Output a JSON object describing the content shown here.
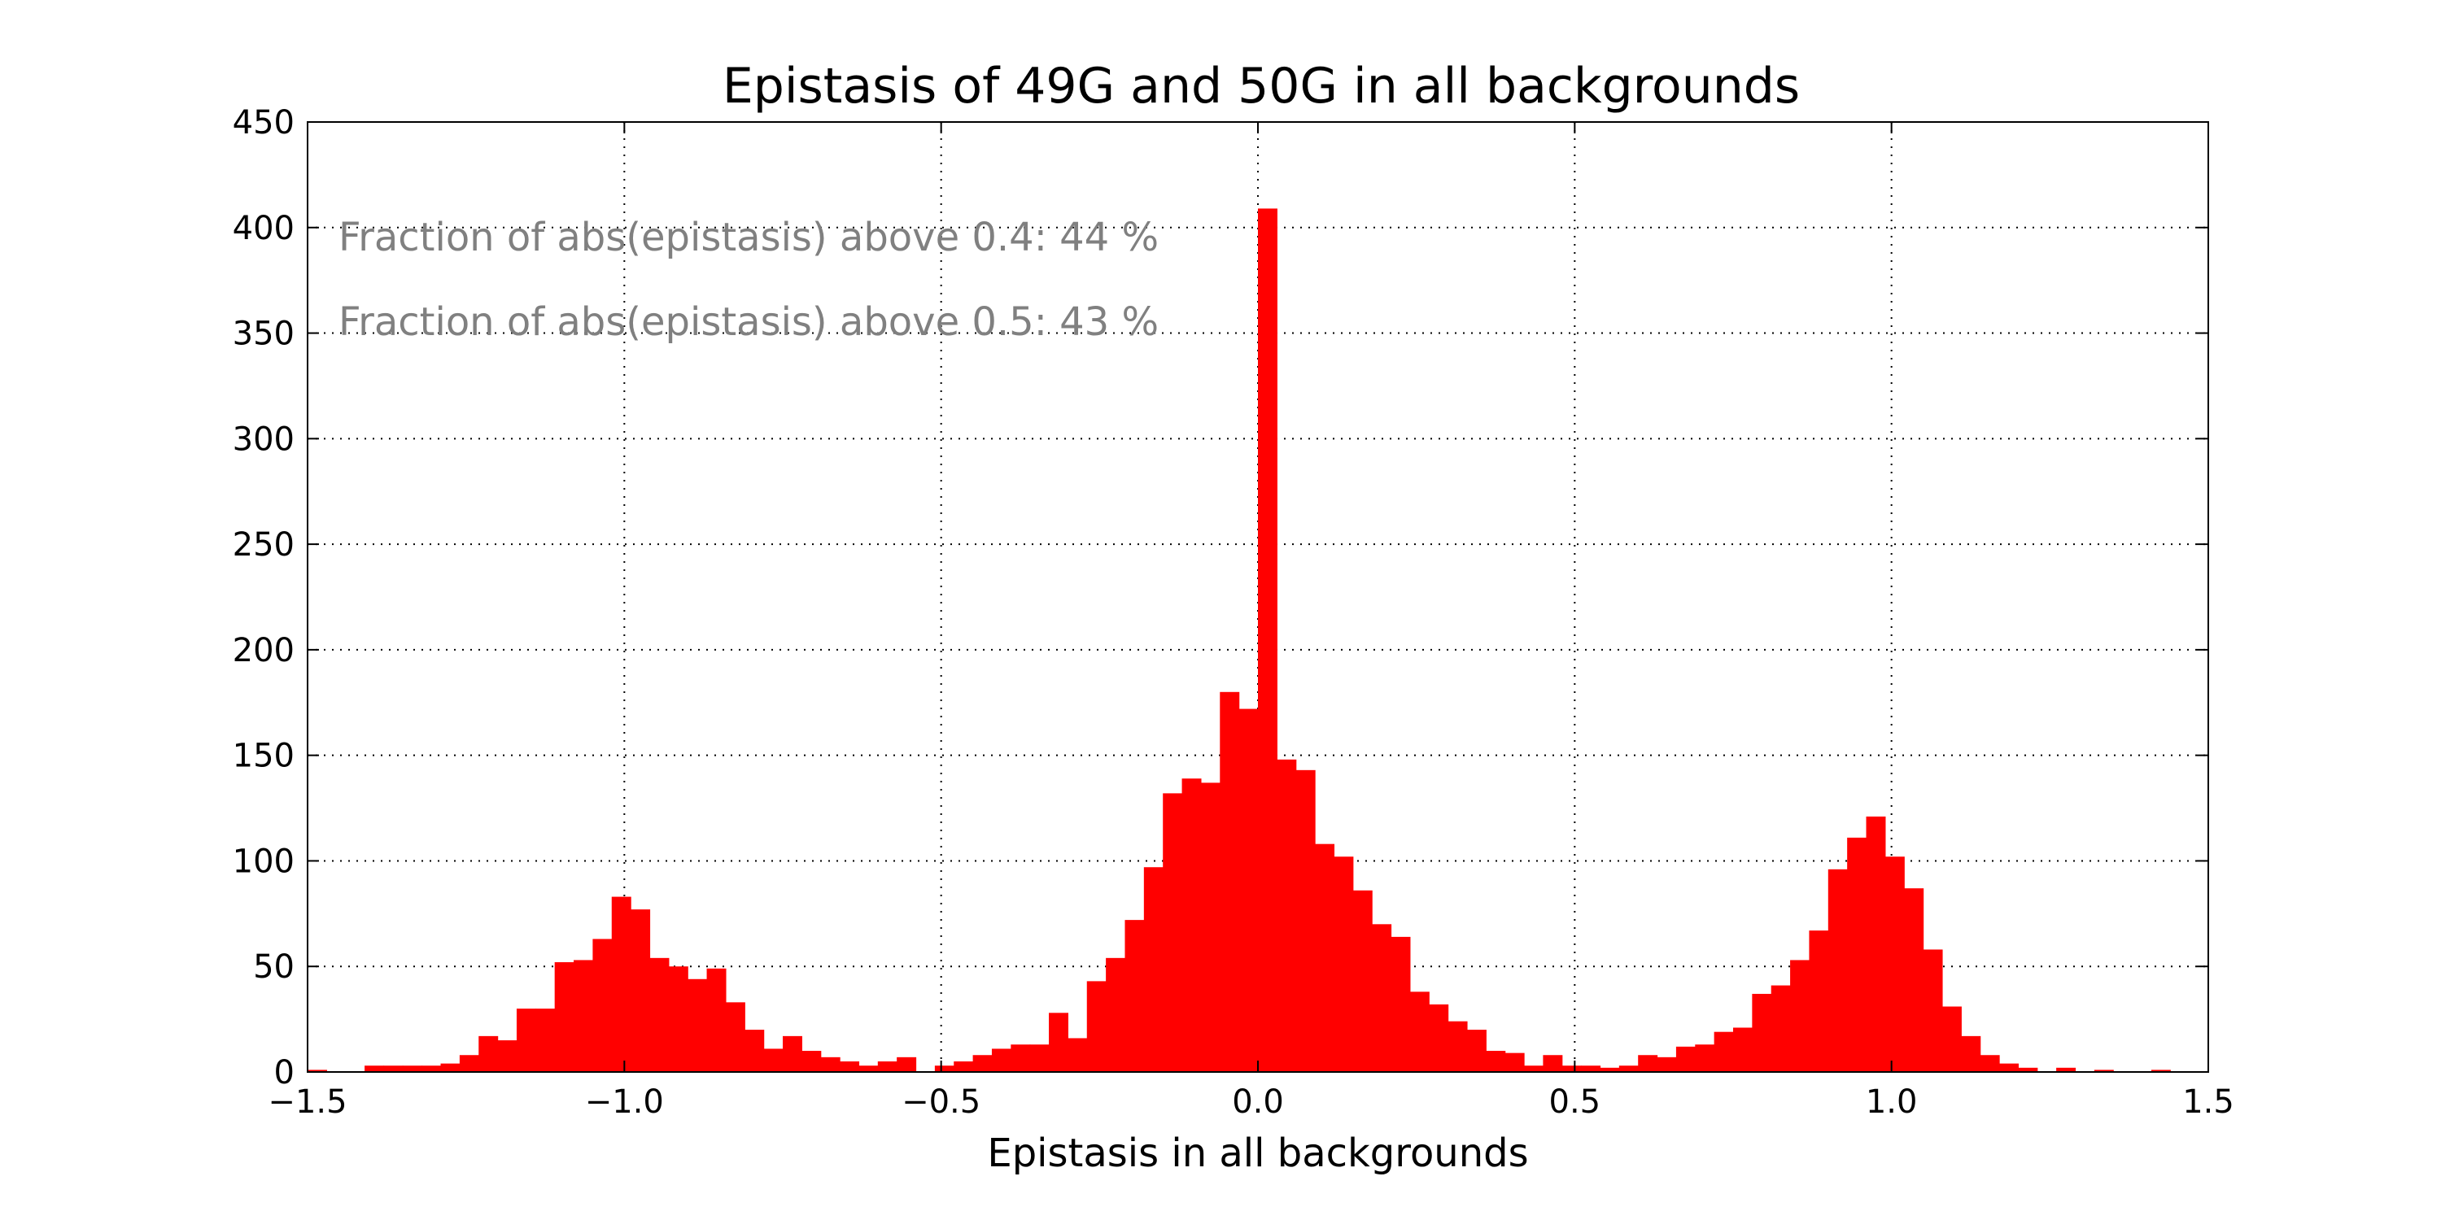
{
  "chart_data": {
    "type": "bar",
    "title": "Epistasis of 49G and 50G in all backgrounds",
    "xlabel": "Epistasis in all backgrounds",
    "ylabel": "",
    "xlim": [
      -1.5,
      1.5
    ],
    "ylim": [
      0,
      450
    ],
    "xticks": [
      -1.5,
      -1.0,
      -0.5,
      0.0,
      0.5,
      1.0,
      1.5
    ],
    "xtick_labels": [
      "−1.5",
      "−1.0",
      "−0.5",
      "0.0",
      "0.5",
      "1.0",
      "1.5"
    ],
    "yticks": [
      0,
      50,
      100,
      150,
      200,
      250,
      300,
      350,
      400,
      450
    ],
    "ytick_labels": [
      "0",
      "50",
      "100",
      "150",
      "200",
      "250",
      "300",
      "350",
      "400",
      "450"
    ],
    "grid": true,
    "bar_color": "#ff0000",
    "annotations": [
      "Fraction of abs(epistasis) above 0.4: 44 %",
      "Fraction of abs(epistasis) above 0.5: 43 %"
    ],
    "bin_width": 0.03,
    "bin_starts": [
      -1.5,
      -1.47,
      -1.44,
      -1.41,
      -1.38,
      -1.35,
      -1.32,
      -1.29,
      -1.26,
      -1.23,
      -1.2,
      -1.17,
      -1.14,
      -1.11,
      -1.08,
      -1.05,
      -1.02,
      -0.99,
      -0.96,
      -0.93,
      -0.9,
      -0.87,
      -0.84,
      -0.81,
      -0.78,
      -0.75,
      -0.72,
      -0.69,
      -0.66,
      -0.63,
      -0.6,
      -0.57,
      -0.54,
      -0.51,
      -0.48,
      -0.45,
      -0.42,
      -0.39,
      -0.36,
      -0.33,
      -0.3,
      -0.27,
      -0.24,
      -0.21,
      -0.18,
      -0.15,
      -0.12,
      -0.09,
      -0.06,
      -0.03,
      0.0,
      0.03,
      0.06,
      0.09,
      0.12,
      0.15,
      0.18,
      0.21,
      0.24,
      0.27,
      0.3,
      0.33,
      0.36,
      0.39,
      0.42,
      0.45,
      0.48,
      0.51,
      0.54,
      0.57,
      0.6,
      0.63,
      0.66,
      0.69,
      0.72,
      0.75,
      0.78,
      0.81,
      0.84,
      0.87,
      0.9,
      0.93,
      0.96,
      0.99,
      1.02,
      1.05,
      1.08,
      1.11,
      1.14,
      1.17,
      1.2,
      1.23,
      1.26,
      1.29,
      1.32,
      1.35,
      1.38,
      1.41,
      1.44,
      1.47
    ],
    "counts": [
      1,
      0,
      0,
      3,
      3,
      3,
      3,
      4,
      8,
      17,
      15,
      30,
      30,
      52,
      53,
      63,
      83,
      77,
      54,
      50,
      44,
      49,
      33,
      20,
      11,
      17,
      10,
      7,
      5,
      3,
      5,
      7,
      0,
      3,
      5,
      8,
      11,
      13,
      13,
      28,
      16,
      43,
      54,
      72,
      97,
      132,
      139,
      137,
      180,
      172,
      409,
      148,
      143,
      108,
      102,
      86,
      70,
      64,
      38,
      32,
      24,
      20,
      10,
      9,
      3,
      8,
      3,
      3,
      2,
      3,
      8,
      7,
      12,
      13,
      19,
      21,
      37,
      41,
      53,
      67,
      96,
      111,
      121,
      102,
      87,
      58,
      31,
      17,
      8,
      4,
      2,
      0,
      2,
      0,
      1,
      0,
      0,
      1,
      0,
      0
    ]
  }
}
